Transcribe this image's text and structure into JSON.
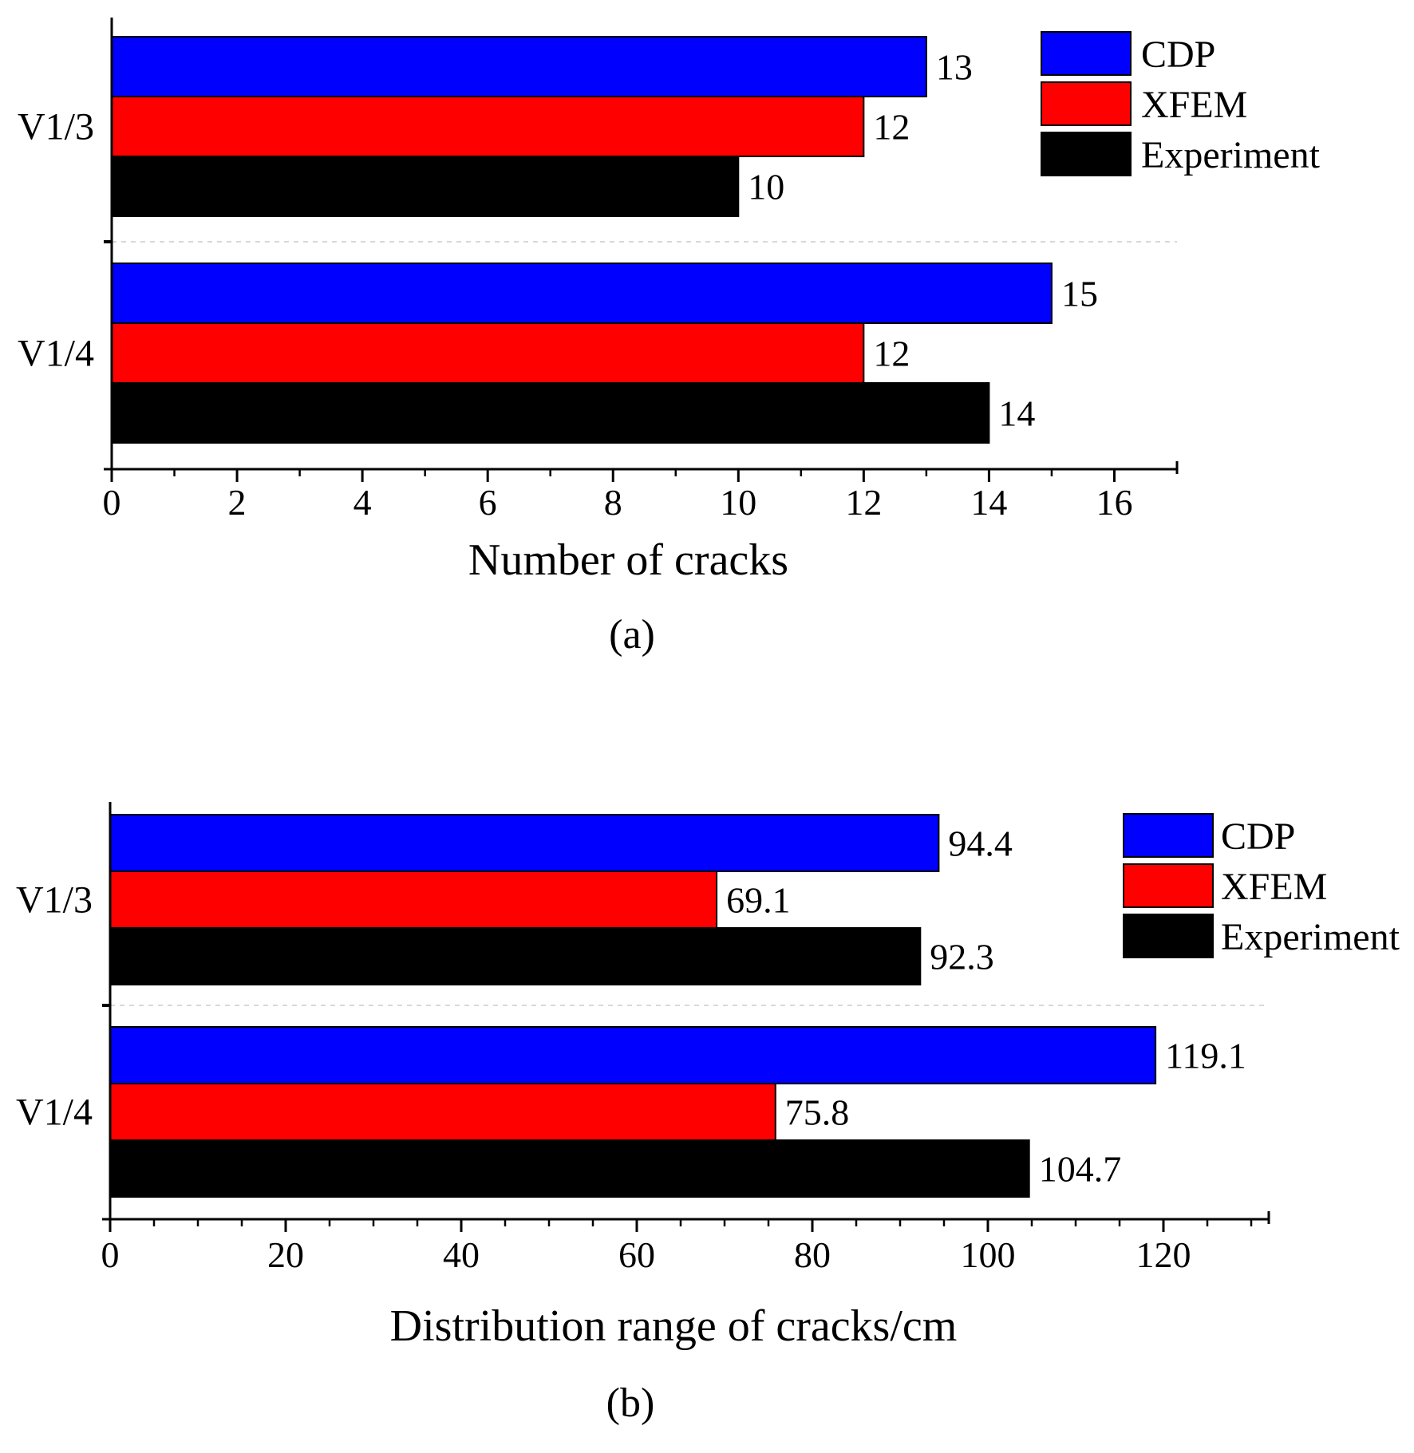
{
  "chart_data": [
    {
      "type": "bar",
      "orientation": "horizontal",
      "panel_label": "(a)",
      "xlabel": "Number of cracks",
      "ylabel": "",
      "xlim": [
        0,
        17
      ],
      "x_ticks": [
        0,
        2,
        4,
        6,
        8,
        10,
        12,
        14,
        16
      ],
      "categories": [
        "V1/3",
        "V1/4"
      ],
      "value_format": "int",
      "legend_position": "top-right",
      "separator_line": true,
      "series": [
        {
          "name": "CDP",
          "color": "#0000ff",
          "values": [
            13,
            15
          ]
        },
        {
          "name": "XFEM",
          "color": "#ff0000",
          "values": [
            12,
            12
          ]
        },
        {
          "name": "Experiment",
          "color": "#000000",
          "values": [
            10,
            14
          ]
        }
      ]
    },
    {
      "type": "bar",
      "orientation": "horizontal",
      "panel_label": "(b)",
      "xlabel": "Distribution range of cracks/cm",
      "ylabel": "",
      "xlim": [
        0,
        132
      ],
      "x_ticks": [
        0,
        20,
        40,
        60,
        80,
        100,
        120
      ],
      "categories": [
        "V1/3",
        "V1/4"
      ],
      "value_format": "1dp",
      "legend_position": "top-right",
      "separator_line": true,
      "series": [
        {
          "name": "CDP",
          "color": "#0000ff",
          "values": [
            94.4,
            119.1
          ]
        },
        {
          "name": "XFEM",
          "color": "#ff0000",
          "values": [
            69.1,
            75.8
          ]
        },
        {
          "name": "Experiment",
          "color": "#000000",
          "values": [
            92.3,
            104.7
          ]
        }
      ]
    }
  ]
}
